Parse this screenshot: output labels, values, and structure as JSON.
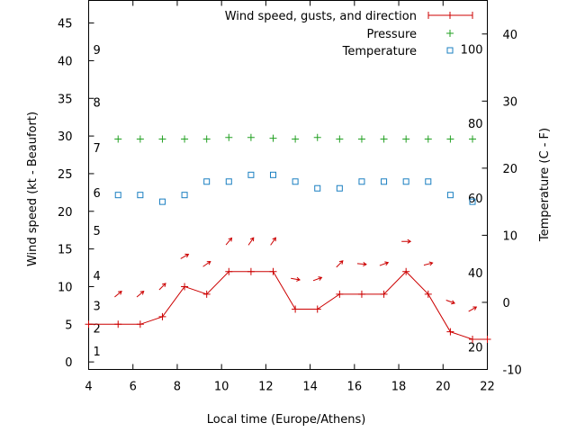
{
  "chart_data": {
    "type": "line",
    "xlabel": "Local time (Europe/Athens)",
    "ylabel_left": "Wind speed (kt - Beaufort)",
    "ylabel_right": "Temperature (C - F)",
    "xlim": [
      4,
      22
    ],
    "ylim_left": [
      -1,
      48
    ],
    "ylim_right": [
      -10,
      45
    ],
    "x_ticks": [
      "4",
      "6",
      "8",
      "10",
      "12",
      "14",
      "16",
      "18",
      "20",
      "22"
    ],
    "y_left_ticks": [
      "0",
      "5",
      "10",
      "15",
      "20",
      "25",
      "30",
      "35",
      "40",
      "45"
    ],
    "y_right_ticks": [
      "-10",
      "0",
      "10",
      "20",
      "30",
      "40"
    ],
    "beaufort_labels": [
      "1",
      "2",
      "3",
      "4",
      "5",
      "6",
      "7",
      "8",
      "9"
    ],
    "fahrenheit_labels": [
      "20",
      "40",
      "60",
      "80",
      "100"
    ],
    "legend": {
      "position": "top-right",
      "entries": [
        "Wind speed, gusts, and direction",
        "Pressure",
        "Temperature"
      ]
    },
    "colors": {
      "wind": "#cc0000",
      "pressure": "#22a022",
      "temperature": "#1a7fc1"
    },
    "series": [
      {
        "name": "Wind speed, gusts, and direction",
        "x": [
          4,
          5.33,
          6.33,
          7.33,
          8.33,
          9.33,
          10.33,
          11.33,
          12.33,
          13.33,
          14.33,
          15.33,
          16.33,
          17.33,
          18.33,
          19.33,
          20.33,
          21.33,
          22
        ],
        "y": [
          5,
          5,
          5,
          6,
          10,
          9,
          12,
          12,
          12,
          7,
          7,
          9,
          9,
          9,
          12,
          9,
          4,
          3,
          3
        ]
      },
      {
        "name": "Pressure",
        "x": [
          5.33,
          6.33,
          7.33,
          8.33,
          9.33,
          10.33,
          11.33,
          12.33,
          13.33,
          14.33,
          15.33,
          16.33,
          17.33,
          18.33,
          19.33,
          20.33,
          21.33
        ],
        "y": [
          29.6,
          29.6,
          29.6,
          29.6,
          29.6,
          29.8,
          29.8,
          29.7,
          29.6,
          29.8,
          29.6,
          29.6,
          29.6,
          29.6,
          29.6,
          29.6,
          29.6
        ]
      },
      {
        "name": "Temperature",
        "x": [
          5.33,
          6.33,
          7.33,
          8.33,
          9.33,
          10.33,
          11.33,
          12.33,
          13.33,
          14.33,
          15.33,
          16.33,
          17.33,
          18.33,
          19.33,
          20.33,
          21.33
        ],
        "y": [
          16,
          16,
          15,
          16,
          18,
          18,
          19,
          19,
          18,
          17,
          17,
          18,
          18,
          18,
          18,
          16,
          15
        ]
      }
    ],
    "wind_direction": {
      "x": [
        5.33,
        6.33,
        7.33,
        8.33,
        9.33,
        10.33,
        11.33,
        12.33,
        13.33,
        14.33,
        15.33,
        16.33,
        17.33,
        18.33,
        19.33,
        20.33,
        21.33
      ],
      "gust_kt": [
        9,
        9,
        10,
        14,
        13,
        16,
        16,
        16,
        11,
        11,
        13,
        13,
        13,
        16,
        13,
        8,
        7
      ],
      "toward_deg": [
        50,
        50,
        45,
        60,
        55,
        40,
        35,
        35,
        100,
        70,
        45,
        95,
        70,
        90,
        75,
        110,
        60
      ]
    }
  }
}
